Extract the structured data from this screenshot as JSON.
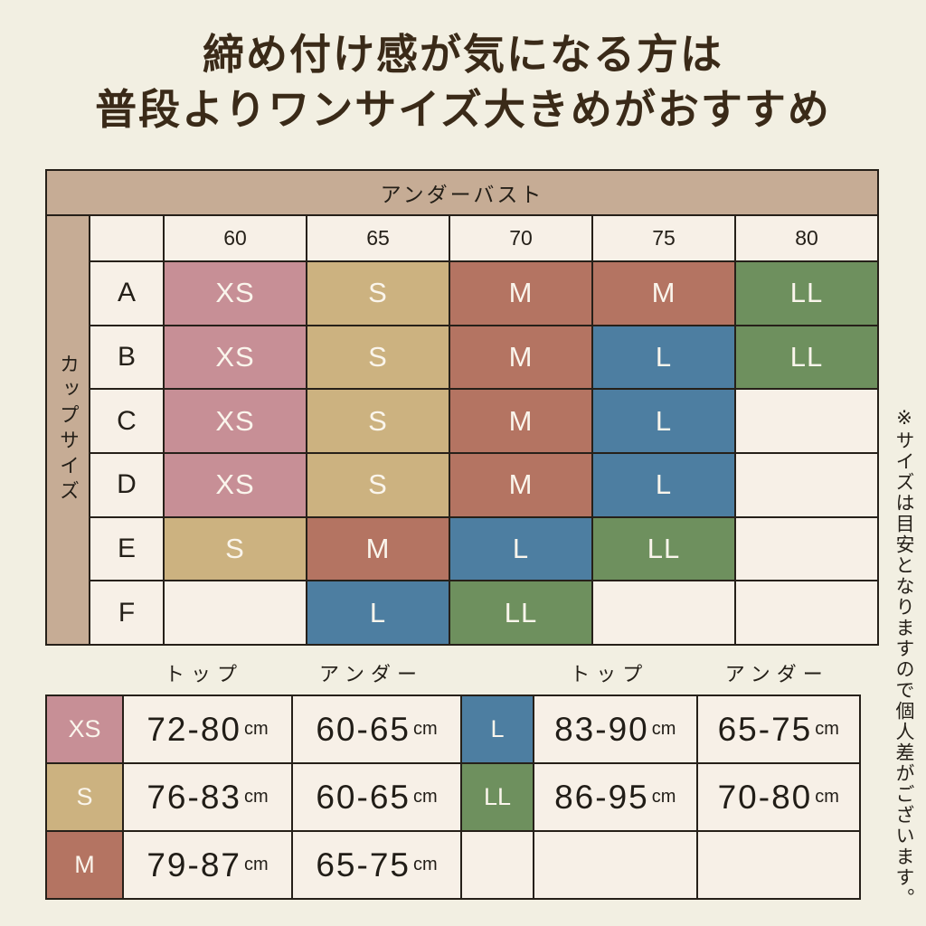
{
  "title": {
    "line1": "締め付け感が気になる方は",
    "line2": "普段よりワンサイズ大きめがおすすめ"
  },
  "size_colors": {
    "XS": "#c78f96",
    "S": "#ccb280",
    "M": "#b47462",
    "L": "#4d7ea1",
    "LL": "#6e905e"
  },
  "theme": {
    "page_background": "#f2efe2",
    "cell_background": "#f7f0e7",
    "band_background": "#c6ac95",
    "border": "#262019",
    "title_text": "#3a2a18",
    "light_text": "#faf5ec"
  },
  "size_chart": {
    "header": "アンダーバスト",
    "row_axis_label": "カップサイズ",
    "underbust_values": [
      "60",
      "65",
      "70",
      "75",
      "80"
    ],
    "cup_rows": [
      {
        "cup": "A",
        "cells": [
          "XS",
          "S",
          "M",
          "M",
          "LL"
        ]
      },
      {
        "cup": "B",
        "cells": [
          "XS",
          "S",
          "M",
          "L",
          "LL"
        ]
      },
      {
        "cup": "C",
        "cells": [
          "XS",
          "S",
          "M",
          "L",
          ""
        ]
      },
      {
        "cup": "D",
        "cells": [
          "XS",
          "S",
          "M",
          "L",
          ""
        ]
      },
      {
        "cup": "E",
        "cells": [
          "S",
          "M",
          "L",
          "LL",
          ""
        ]
      },
      {
        "cup": "F",
        "cells": [
          "",
          "L",
          "LL",
          "",
          ""
        ]
      }
    ]
  },
  "measurements": {
    "top_label": "トップ",
    "under_label": "アンダー",
    "unit": "cm",
    "left_rows": [
      {
        "size": "XS",
        "top": "72-80",
        "under": "60-65"
      },
      {
        "size": "S",
        "top": "76-83",
        "under": "60-65"
      },
      {
        "size": "M",
        "top": "79-87",
        "under": "65-75"
      }
    ],
    "right_rows": [
      {
        "size": "L",
        "top": "83-90",
        "under": "65-75"
      },
      {
        "size": "LL",
        "top": "86-95",
        "under": "70-80"
      },
      {
        "size": "",
        "top": "",
        "under": ""
      }
    ]
  },
  "note": "※サイズは目安となりますので個人差がございます。"
}
